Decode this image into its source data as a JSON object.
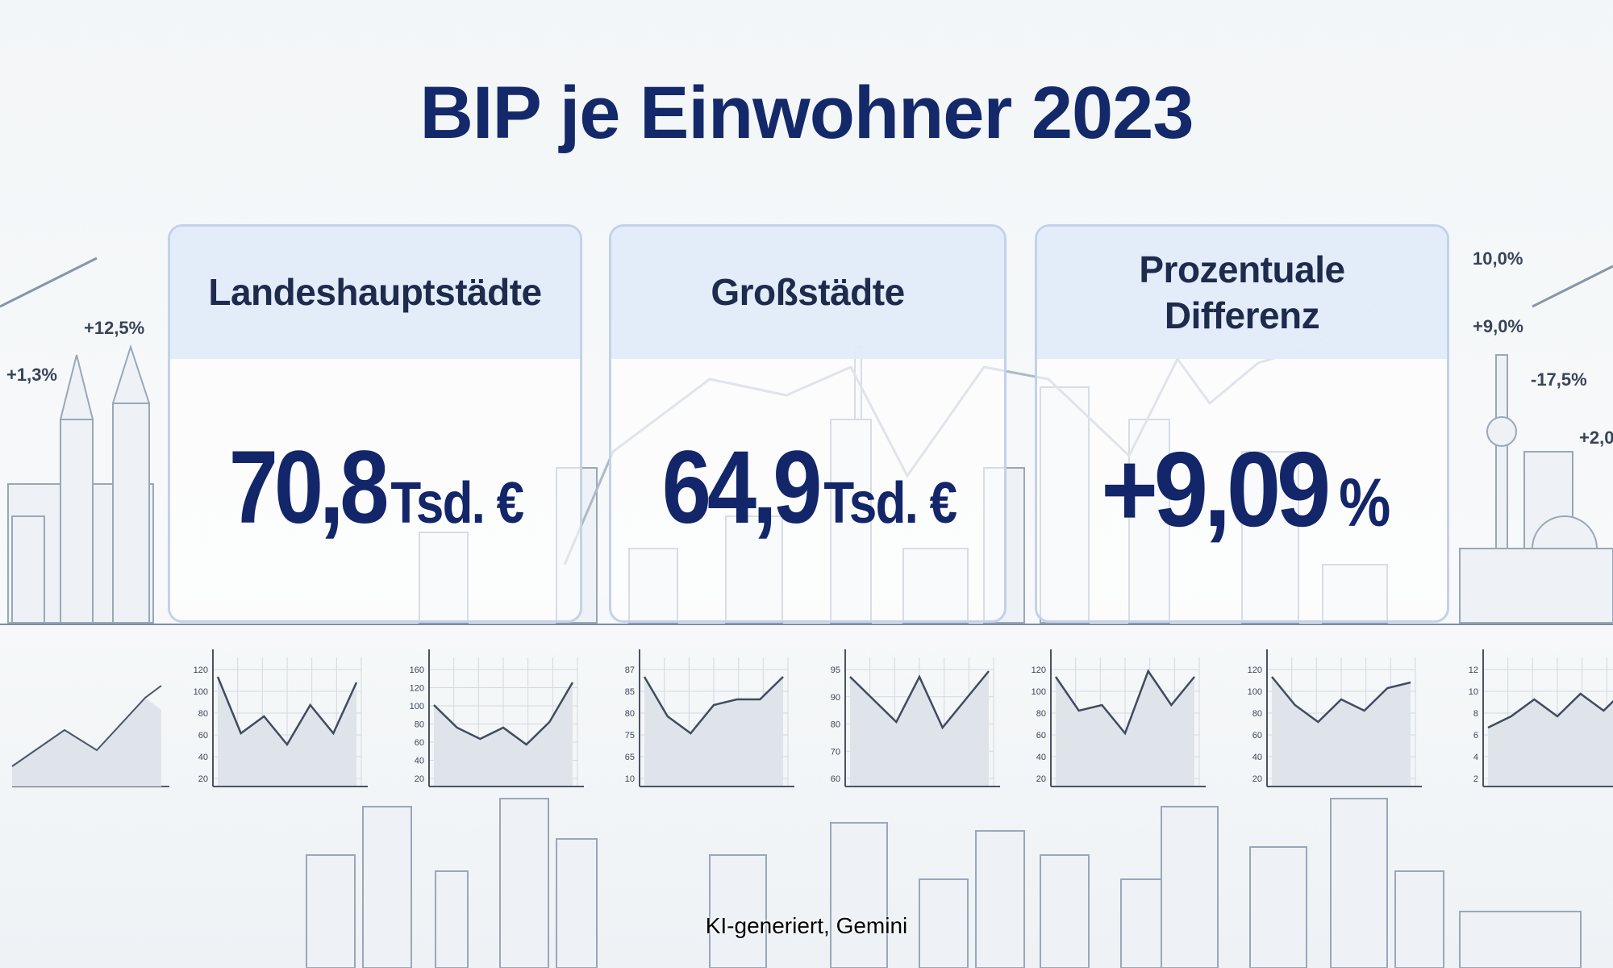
{
  "title": "BIP je Einwohner 2023",
  "cards": [
    {
      "label": "Landeshauptstädte",
      "value": "70,8",
      "unit": "Tsd. €"
    },
    {
      "label": "Großstädte",
      "value": "64,9",
      "unit": "Tsd. €"
    },
    {
      "label": "Prozentuale Differenz",
      "value": "+9,09",
      "unit": "%"
    }
  ],
  "annotations": [
    "+12,5%",
    "+1,3%",
    "10,0%",
    "+9,0%",
    "-17,5%",
    "+2,0"
  ],
  "mini_charts": [
    {
      "ticks": [
        "120",
        "100",
        "80",
        "60",
        "40",
        "20"
      ]
    },
    {
      "ticks": [
        "160",
        "120",
        "100",
        "80",
        "60",
        "40",
        "20"
      ]
    },
    {
      "ticks": [
        "87",
        "85",
        "80",
        "75",
        "65",
        "10"
      ]
    },
    {
      "ticks": [
        "95",
        "90",
        "80",
        "70",
        "60"
      ]
    },
    {
      "ticks": [
        "120",
        "100",
        "80",
        "60",
        "40",
        "20"
      ]
    },
    {
      "ticks": [
        "120",
        "100",
        "80",
        "60",
        "40",
        "20"
      ]
    },
    {
      "ticks": [
        "12",
        "10",
        "8",
        "6",
        "4",
        "2"
      ]
    }
  ],
  "credit": "KI-generiert, Gemini"
}
